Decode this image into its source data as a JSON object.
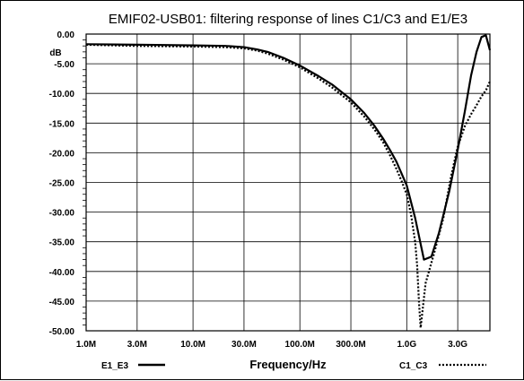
{
  "chart_data": {
    "type": "line",
    "title": "EMIF02-USB01: filtering response of lines C1/C3 and E1/E3",
    "xlabel": "Frequency/Hz",
    "ylabel": "dB",
    "x_scale": "log",
    "xlim": [
      1000000,
      6000000000
    ],
    "ylim": [
      -50,
      0
    ],
    "grid": true,
    "x_ticks": [
      {
        "value": 1000000,
        "label": "1.0M"
      },
      {
        "value": 3000000,
        "label": "3.0M"
      },
      {
        "value": 10000000,
        "label": "10.0M"
      },
      {
        "value": 30000000,
        "label": "30.0M"
      },
      {
        "value": 100000000,
        "label": "100.0M"
      },
      {
        "value": 300000000,
        "label": "300.0M"
      },
      {
        "value": 1000000000,
        "label": "1.0G"
      },
      {
        "value": 3000000000,
        "label": "3.0G"
      }
    ],
    "y_ticks": [
      {
        "value": 0,
        "label": "0.00"
      },
      {
        "value": -5,
        "label": "-5.00"
      },
      {
        "value": -10,
        "label": "-10.00"
      },
      {
        "value": -15,
        "label": "-15.00"
      },
      {
        "value": -20,
        "label": "-20.00"
      },
      {
        "value": -25,
        "label": "-25.00"
      },
      {
        "value": -30,
        "label": "-30.00"
      },
      {
        "value": -35,
        "label": "-35.00"
      },
      {
        "value": -40,
        "label": "-40.00"
      },
      {
        "value": -45,
        "label": "-45.00"
      },
      {
        "value": -50,
        "label": "-50.00"
      }
    ],
    "series": [
      {
        "name": "E1_E3",
        "style": "solid",
        "color": "#000000",
        "x": [
          1000000,
          3000000,
          10000000,
          20000000,
          30000000,
          40000000,
          50000000,
          70000000,
          100000000,
          150000000,
          200000000,
          300000000,
          400000000,
          500000000,
          600000000,
          700000000,
          800000000,
          1000000000,
          1200000000,
          1450000000,
          1700000000,
          2000000000,
          2500000000,
          3000000000,
          3500000000,
          4000000000,
          4500000000,
          5000000000,
          5500000000,
          6000000000
        ],
        "y": [
          -1.7,
          -1.8,
          -1.9,
          -2.0,
          -2.2,
          -2.6,
          -3.0,
          -4.0,
          -5.3,
          -7.1,
          -8.5,
          -11.0,
          -13.3,
          -15.5,
          -17.6,
          -19.6,
          -21.5,
          -25.5,
          -31.0,
          -38.0,
          -37.5,
          -33.5,
          -26.5,
          -19.5,
          -13.0,
          -7.0,
          -3.0,
          -0.5,
          -0.2,
          -2.7
        ]
      },
      {
        "name": "C1_C3",
        "style": "dotted",
        "color": "#000000",
        "x": [
          1000000,
          3000000,
          10000000,
          20000000,
          30000000,
          40000000,
          50000000,
          70000000,
          100000000,
          150000000,
          200000000,
          300000000,
          400000000,
          500000000,
          600000000,
          700000000,
          800000000,
          900000000,
          1000000000,
          1100000000,
          1200000000,
          1250000000,
          1300000000,
          1350000000,
          1500000000,
          1800000000,
          2200000000,
          2600000000,
          3000000000,
          3500000000,
          4000000000,
          4500000000,
          5000000000,
          5500000000,
          6000000000
        ],
        "y": [
          -1.8,
          -2.0,
          -2.1,
          -2.2,
          -2.4,
          -2.8,
          -3.3,
          -4.3,
          -5.6,
          -7.5,
          -9.0,
          -11.5,
          -13.9,
          -16.1,
          -18.2,
          -20.5,
          -22.7,
          -24.9,
          -27.0,
          -30.5,
          -35.0,
          -39.0,
          -45.0,
          -49.5,
          -42.0,
          -37.0,
          -31.0,
          -24.0,
          -19.0,
          -15.5,
          -13.5,
          -12.0,
          -10.5,
          -9.5,
          -8.0
        ]
      }
    ],
    "legend": [
      {
        "label": "E1_E3",
        "placement": "bottom-left",
        "style": "solid"
      },
      {
        "label": "C1_C3",
        "placement": "bottom-right",
        "style": "dotted"
      }
    ]
  }
}
